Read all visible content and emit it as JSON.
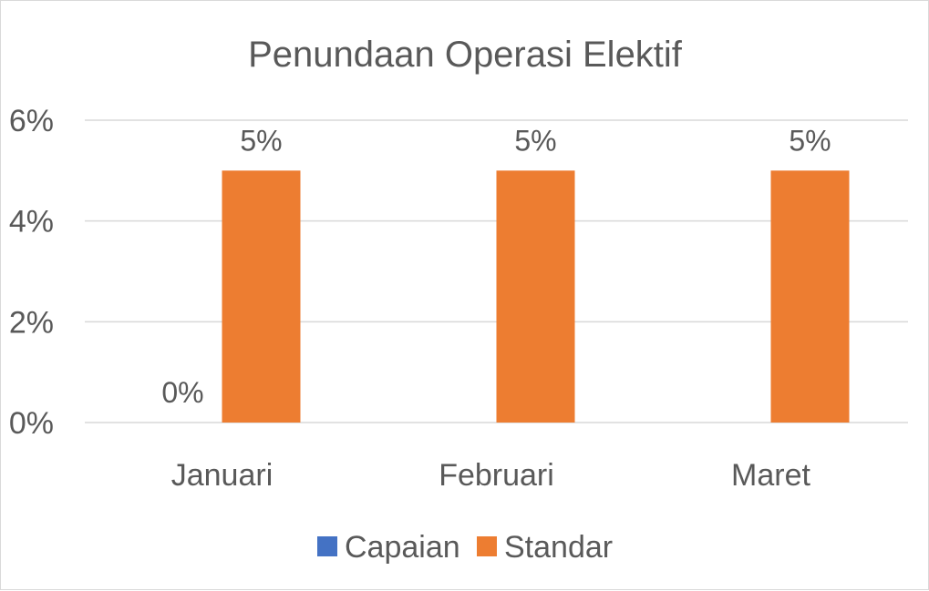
{
  "chart_data": {
    "type": "bar",
    "title": "Penundaan Operasi Elektif",
    "categories": [
      "Januari",
      "Februari",
      "Maret"
    ],
    "series": [
      {
        "name": "Capaian",
        "values": [
          0,
          null,
          null
        ],
        "labels": [
          "0%",
          "",
          ""
        ],
        "color": "#4472c4"
      },
      {
        "name": "Standar",
        "values": [
          5,
          5,
          5
        ],
        "labels": [
          "5%",
          "5%",
          "5%"
        ],
        "color": "#ed7d31"
      }
    ],
    "y_ticks": [
      "0%",
      "2%",
      "4%",
      "6%"
    ],
    "ylim": [
      0,
      6
    ],
    "y_unit": "%",
    "grid": true,
    "legend_position": "bottom"
  }
}
